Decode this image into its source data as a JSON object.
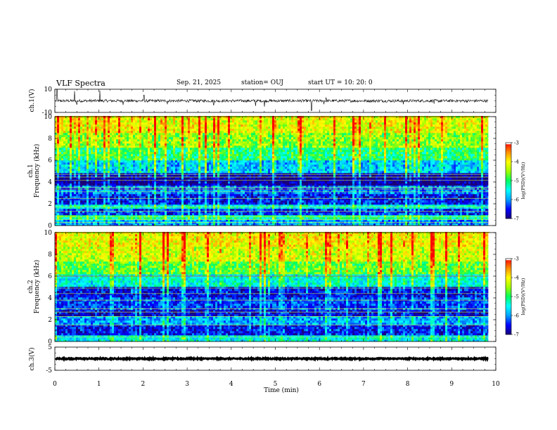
{
  "header": {
    "title": "VLF Spectra",
    "date": "Sep. 21, 2025",
    "station": "station= OUJ",
    "start": "start  UT =   10: 20: 0"
  },
  "colors": {
    "colormap": [
      "#1a0077",
      "#0000ff",
      "#00a0ff",
      "#00ffff",
      "#00ff60",
      "#a0ff00",
      "#ffff00",
      "#ff9000",
      "#ff0000",
      "#ffffff"
    ]
  },
  "chart_data": [
    {
      "id": "ch1-waveform",
      "type": "line",
      "ylabel": "ch.1(V)",
      "ylim": [
        -10,
        10
      ],
      "yticks": [
        10,
        -10
      ],
      "xlim": [
        0,
        10
      ],
      "data_end_min": 9.83,
      "baseline": 0,
      "noise_amplitude": 1.2,
      "spikes": [
        {
          "t": 0.05,
          "v": 9.5
        },
        {
          "t": 0.45,
          "v": 8.5
        },
        {
          "t": 0.5,
          "v": -3.0
        },
        {
          "t": 1.02,
          "v": 9.0
        },
        {
          "t": 1.55,
          "v": -3.5
        },
        {
          "t": 2.02,
          "v": 5.0
        },
        {
          "t": 2.55,
          "v": -3.0
        },
        {
          "t": 3.6,
          "v": -3.5
        },
        {
          "t": 4.55,
          "v": -4.5
        },
        {
          "t": 4.75,
          "v": -5.0
        },
        {
          "t": 5.82,
          "v": -8.5
        },
        {
          "t": 6.1,
          "v": -3.0
        },
        {
          "t": 6.15,
          "v": 3.0
        },
        {
          "t": 7.9,
          "v": -3.0
        },
        {
          "t": 8.6,
          "v": -2.5
        }
      ]
    },
    {
      "id": "ch1-spectrogram",
      "type": "heatmap",
      "channel": "ch.1",
      "ylabel": "Frequency (kHz)",
      "ylim": [
        0,
        10
      ],
      "yticks": [
        0,
        2,
        4,
        6,
        8,
        10
      ],
      "xlim": [
        0,
        10
      ],
      "data_end_min": 9.83,
      "colorbar": {
        "label": "log(PSD)(V²/Hz)",
        "range": [
          -7,
          -3
        ],
        "ticks": [
          -3,
          -4,
          -5,
          -6,
          -7
        ]
      },
      "bands_khz": [
        {
          "from": 0,
          "to": 0.6,
          "level": -6.1
        },
        {
          "from": 0.6,
          "to": 1.0,
          "level": -5.3
        },
        {
          "from": 1.0,
          "to": 1.5,
          "level": -6.5
        },
        {
          "from": 1.5,
          "to": 2.0,
          "level": -5.6
        },
        {
          "from": 2.0,
          "to": 3.0,
          "level": -6.6
        },
        {
          "from": 3.0,
          "to": 3.6,
          "level": -6.2
        },
        {
          "from": 3.6,
          "to": 4.8,
          "level": -7.0
        },
        {
          "from": 4.8,
          "to": 6.0,
          "level": -5.9
        },
        {
          "from": 6.0,
          "to": 7.2,
          "level": -5.2
        },
        {
          "from": 7.2,
          "to": 8.6,
          "level": -4.7
        },
        {
          "from": 8.6,
          "to": 10.0,
          "level": -4.3
        }
      ],
      "tones_khz": [
        0.3,
        0.55,
        0.8,
        1.3,
        1.7,
        2.5,
        3.1,
        3.35,
        3.5,
        4.15,
        4.45,
        4.7
      ],
      "red_tones_khz": [
        3.35
      ]
    },
    {
      "id": "ch2-spectrogram",
      "type": "heatmap",
      "channel": "ch.2",
      "ylabel": "Frequency (kHz)",
      "ylim": [
        0,
        10
      ],
      "yticks": [
        0,
        2,
        4,
        6,
        8,
        10
      ],
      "xlim": [
        0,
        10
      ],
      "data_end_min": 9.83,
      "colorbar": {
        "label": "log(PSD)(V²/Hz)",
        "range": [
          -7,
          -3
        ],
        "ticks": [
          -3,
          -4,
          -5,
          -6,
          -7
        ]
      },
      "bands_khz": [
        {
          "from": 0,
          "to": 0.5,
          "level": -5.6
        },
        {
          "from": 0.5,
          "to": 1.5,
          "level": -6.6
        },
        {
          "from": 1.5,
          "to": 2.3,
          "level": -6.0
        },
        {
          "from": 2.3,
          "to": 3.0,
          "level": -6.7
        },
        {
          "from": 3.0,
          "to": 4.0,
          "level": -6.4
        },
        {
          "from": 4.0,
          "to": 5.0,
          "level": -6.7
        },
        {
          "from": 5.0,
          "to": 6.2,
          "level": -5.6
        },
        {
          "from": 6.2,
          "to": 7.4,
          "level": -4.9
        },
        {
          "from": 7.4,
          "to": 8.8,
          "level": -4.4
        },
        {
          "from": 8.8,
          "to": 10.0,
          "level": -4.2
        }
      ],
      "tones_khz": [
        0.4,
        1.5,
        2.3,
        2.7,
        3.0,
        3.8,
        4.4,
        4.9,
        6.0
      ],
      "red_tones_khz": [
        6.0
      ]
    },
    {
      "id": "ch3-waveform",
      "type": "line",
      "ylabel": "ch.3(V)",
      "ylim": [
        -5,
        5
      ],
      "yticks": [
        5,
        -5
      ],
      "xlim": [
        0,
        10
      ],
      "data_end_min": 9.83,
      "baseline": 0,
      "noise_amplitude": 0.25,
      "spikes": []
    }
  ],
  "xaxis": {
    "label": "Time (min)",
    "ticks": [
      0,
      1,
      2,
      3,
      4,
      5,
      6,
      7,
      8,
      9,
      10
    ]
  }
}
